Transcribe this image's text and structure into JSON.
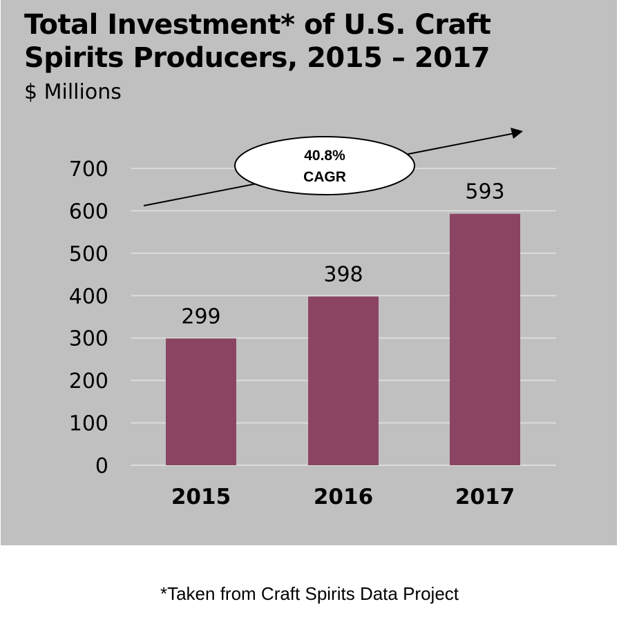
{
  "chart_data": {
    "type": "bar",
    "title": "Total Investment* of U.S. Craft Spirits Producers, 2015 – 2017",
    "title_lines": [
      "Total Investment* of U.S. Craft",
      "Spirits Producers, 2015 – 2017"
    ],
    "subtitle": "$ Millions",
    "categories": [
      "2015",
      "2016",
      "2017"
    ],
    "values": [
      299,
      398,
      593
    ],
    "data_labels": [
      "299",
      "398",
      "593"
    ],
    "ylim": [
      0,
      700
    ],
    "yticks": [
      0,
      100,
      200,
      300,
      400,
      500,
      600,
      700
    ],
    "ytick_labels": [
      "0",
      "100",
      "200",
      "300",
      "400",
      "500",
      "600",
      "700"
    ],
    "xlabel": "",
    "ylabel": "",
    "grid": true,
    "annotation": {
      "line1": "40.8%",
      "line2": "CAGR"
    },
    "bar_color": "#8b4563",
    "background_color": "#c0c0c0"
  },
  "footnote": "*Taken from Craft Spirits Data Project"
}
